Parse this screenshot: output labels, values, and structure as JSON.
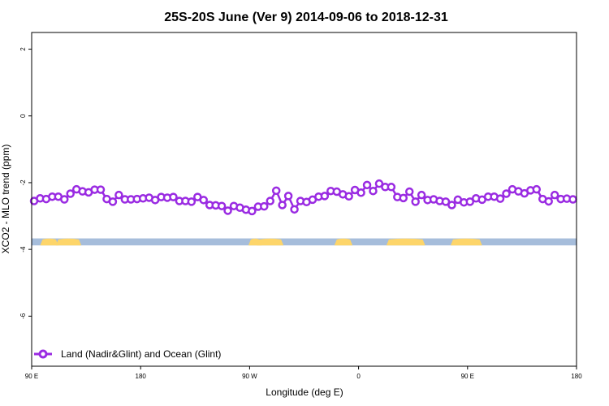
{
  "chart_data": {
    "type": "line",
    "title": "25S-20S June (Ver 9)   2014-09-06 to 2018-12-31",
    "xlabel": "Longitude (deg E)",
    "ylabel": "XCO2 - MLO trend (ppm)",
    "xlim": [
      90,
      540
    ],
    "ylim": [
      -7.5,
      2.5
    ],
    "xticks": [
      {
        "value": 90,
        "label": "90 E"
      },
      {
        "value": 180,
        "label": "180"
      },
      {
        "value": 270,
        "label": "90 W"
      },
      {
        "value": 360,
        "label": "0"
      },
      {
        "value": 450,
        "label": "90 E"
      },
      {
        "value": 540,
        "label": "180"
      }
    ],
    "yticks": [
      {
        "value": 2,
        "label": "2"
      },
      {
        "value": 0,
        "label": "0"
      },
      {
        "value": -2,
        "label": "-2"
      },
      {
        "value": -4,
        "label": "-4"
      },
      {
        "value": -6,
        "label": "-6"
      }
    ],
    "grid": false,
    "legend_position": "bottom-left",
    "series": [
      {
        "name": "Land (Nadir&Glint) and Ocean (Glint)",
        "color": "#9a2be2",
        "x": [
          92,
          97,
          102,
          107,
          112,
          117,
          122,
          127,
          132,
          137,
          142,
          147,
          152,
          157,
          162,
          167,
          172,
          177,
          182,
          187,
          192,
          197,
          202,
          207,
          212,
          217,
          222,
          227,
          232,
          237,
          242,
          247,
          252,
          257,
          262,
          267,
          272,
          277,
          282,
          287,
          292,
          297,
          302,
          307,
          312,
          317,
          322,
          327,
          332,
          337,
          342,
          347,
          352,
          357,
          362,
          367,
          372,
          377,
          382,
          387,
          392,
          397,
          402,
          407,
          412,
          417,
          422,
          427,
          432,
          437,
          442,
          447,
          452,
          457,
          462,
          467,
          472,
          477,
          482,
          487,
          492,
          497,
          502,
          507,
          512,
          517,
          522,
          527,
          532,
          537
        ],
        "y": [
          -2.55,
          -2.47,
          -2.49,
          -2.42,
          -2.42,
          -2.5,
          -2.33,
          -2.2,
          -2.26,
          -2.29,
          -2.21,
          -2.21,
          -2.49,
          -2.57,
          -2.37,
          -2.5,
          -2.5,
          -2.49,
          -2.47,
          -2.45,
          -2.52,
          -2.43,
          -2.45,
          -2.43,
          -2.55,
          -2.55,
          -2.57,
          -2.43,
          -2.52,
          -2.67,
          -2.68,
          -2.7,
          -2.84,
          -2.7,
          -2.75,
          -2.81,
          -2.85,
          -2.72,
          -2.71,
          -2.55,
          -2.24,
          -2.67,
          -2.4,
          -2.8,
          -2.55,
          -2.58,
          -2.51,
          -2.42,
          -2.4,
          -2.25,
          -2.27,
          -2.35,
          -2.41,
          -2.22,
          -2.3,
          -2.07,
          -2.25,
          -2.03,
          -2.13,
          -2.13,
          -2.43,
          -2.46,
          -2.27,
          -2.57,
          -2.37,
          -2.52,
          -2.5,
          -2.55,
          -2.57,
          -2.67,
          -2.51,
          -2.59,
          -2.57,
          -2.47,
          -2.51,
          -2.42,
          -2.42,
          -2.48,
          -2.33,
          -2.2,
          -2.26,
          -2.32,
          -2.23,
          -2.2,
          -2.49,
          -2.56,
          -2.37,
          -2.49,
          -2.48,
          -2.5
        ]
      }
    ],
    "background_band": {
      "description_colors": {
        "ocean": "#a6bddb",
        "land": "#fdd56a"
      },
      "y_range": [
        -3.88,
        -3.67
      ],
      "land_segments": [
        [
          97,
          112
        ],
        [
          110,
          131
        ],
        [
          269,
          280
        ],
        [
          276,
          298
        ],
        [
          340,
          355
        ],
        [
          383,
          415
        ],
        [
          436,
          462
        ]
      ]
    }
  }
}
